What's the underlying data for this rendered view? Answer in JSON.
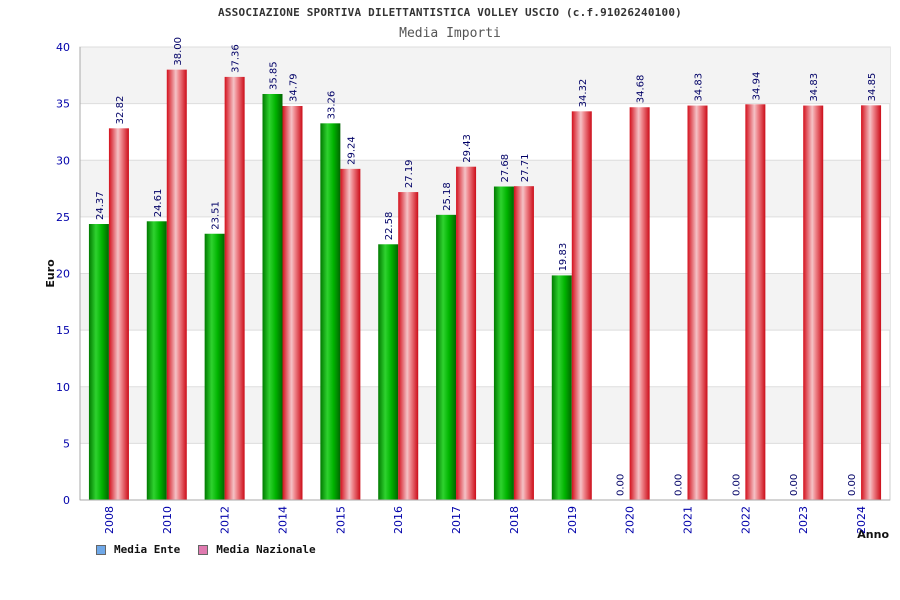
{
  "chart_data": {
    "type": "bar",
    "title": "ASSOCIAZIONE SPORTIVA DILETTANTISTICA VOLLEY USCIO (c.f.91026240100)",
    "subtitle": "Media Importi",
    "xlabel": "Anno",
    "ylabel": "Euro",
    "ylim": [
      0,
      40
    ],
    "yticks": [
      0,
      5,
      10,
      15,
      20,
      25,
      30,
      35,
      40
    ],
    "grid": true,
    "legend_position": "bottom-left",
    "categories": [
      "2008",
      "2010",
      "2012",
      "2014",
      "2015",
      "2016",
      "2017",
      "2018",
      "2019",
      "2020",
      "2021",
      "2022",
      "2023",
      "2024"
    ],
    "series": [
      {
        "name": "Media Ente",
        "color": "#00a000",
        "legend_color": "#6fa8e8",
        "values": [
          24.37,
          24.61,
          23.51,
          35.85,
          33.26,
          22.58,
          25.18,
          27.68,
          19.83,
          0,
          0,
          0,
          0,
          0
        ],
        "labels": [
          "24.37",
          "24.61",
          "23.51",
          "35.85",
          "33.26",
          "22.58",
          "25.18",
          "27.68",
          "19.83",
          "0.00",
          "0.00",
          "0.00",
          "0.00",
          "0.00"
        ]
      },
      {
        "name": "Media Nazionale",
        "color": "#e0202a",
        "legend_color": "#e07ab0",
        "values": [
          32.82,
          38.0,
          37.36,
          34.79,
          29.24,
          27.19,
          29.43,
          27.71,
          34.32,
          34.68,
          34.83,
          34.94,
          34.83,
          34.85
        ],
        "labels": [
          "32.82",
          "38.00",
          "37.36",
          "34.79",
          "29.24",
          "27.19",
          "29.43",
          "27.71",
          "34.32",
          "34.68",
          "34.83",
          "34.94",
          "34.83",
          "34.85"
        ]
      }
    ]
  }
}
